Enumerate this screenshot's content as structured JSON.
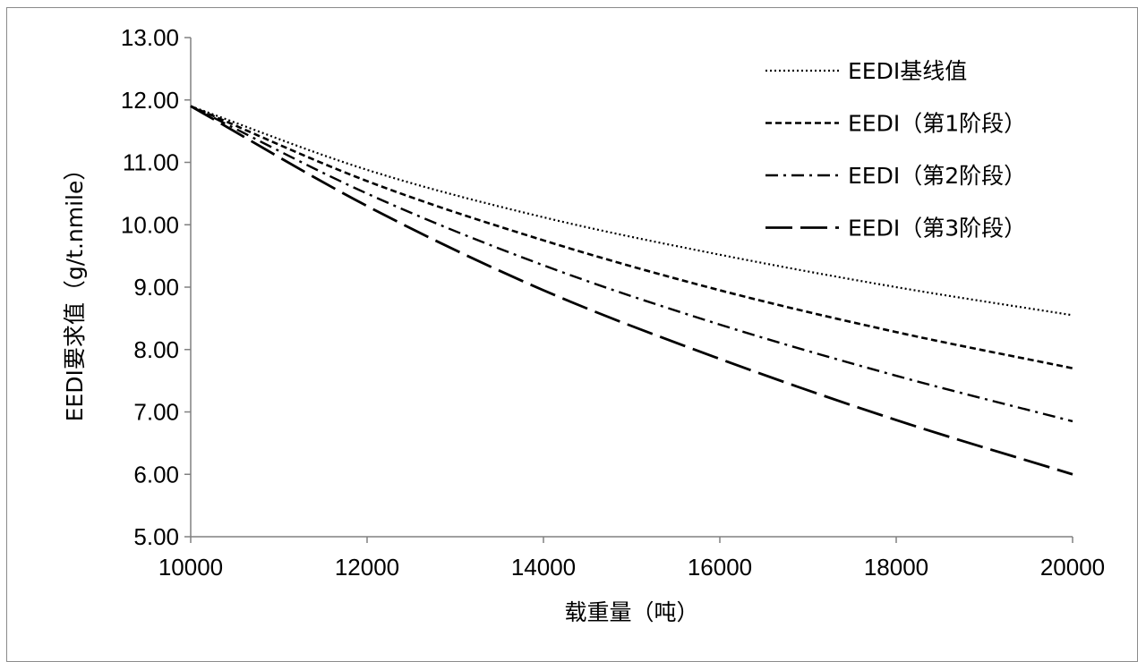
{
  "chart_data": {
    "type": "line",
    "title": "",
    "xlabel": "载重量（吨）",
    "ylabel": "EEDI要求值（g/t.nmile）",
    "xlim": [
      10000,
      20000
    ],
    "ylim": [
      5.0,
      13.0
    ],
    "xticks": [
      10000,
      12000,
      14000,
      16000,
      18000,
      20000
    ],
    "xtick_labels": [
      "10000",
      "12000",
      "14000",
      "16000",
      "18000",
      "20000"
    ],
    "yticks": [
      5,
      6,
      7,
      8,
      9,
      10,
      11,
      12,
      13
    ],
    "ytick_labels": [
      "5.00",
      "6.00",
      "7.00",
      "8.00",
      "9.00",
      "10.00",
      "11.00",
      "12.00",
      "13.00"
    ],
    "grid": false,
    "legend_position": "top-right",
    "x": [
      10000,
      12000,
      14000,
      16000,
      18000,
      20000
    ],
    "series": [
      {
        "name": "EEDI基线值",
        "dash": "dotted",
        "values": [
          11.9,
          10.88,
          10.12,
          9.52,
          9.0,
          8.55
        ]
      },
      {
        "name": "EEDI（第1阶段）",
        "dash": "short-dash",
        "values": [
          11.9,
          10.7,
          9.75,
          8.95,
          8.28,
          7.7
        ]
      },
      {
        "name": "EEDI（第2阶段）",
        "dash": "dash-dot",
        "values": [
          11.9,
          10.5,
          9.35,
          8.4,
          7.58,
          6.85
        ]
      },
      {
        "name": "EEDI（第3阶段）",
        "dash": "long-dash",
        "values": [
          11.9,
          10.3,
          8.95,
          7.85,
          6.87,
          6.0
        ]
      }
    ]
  }
}
